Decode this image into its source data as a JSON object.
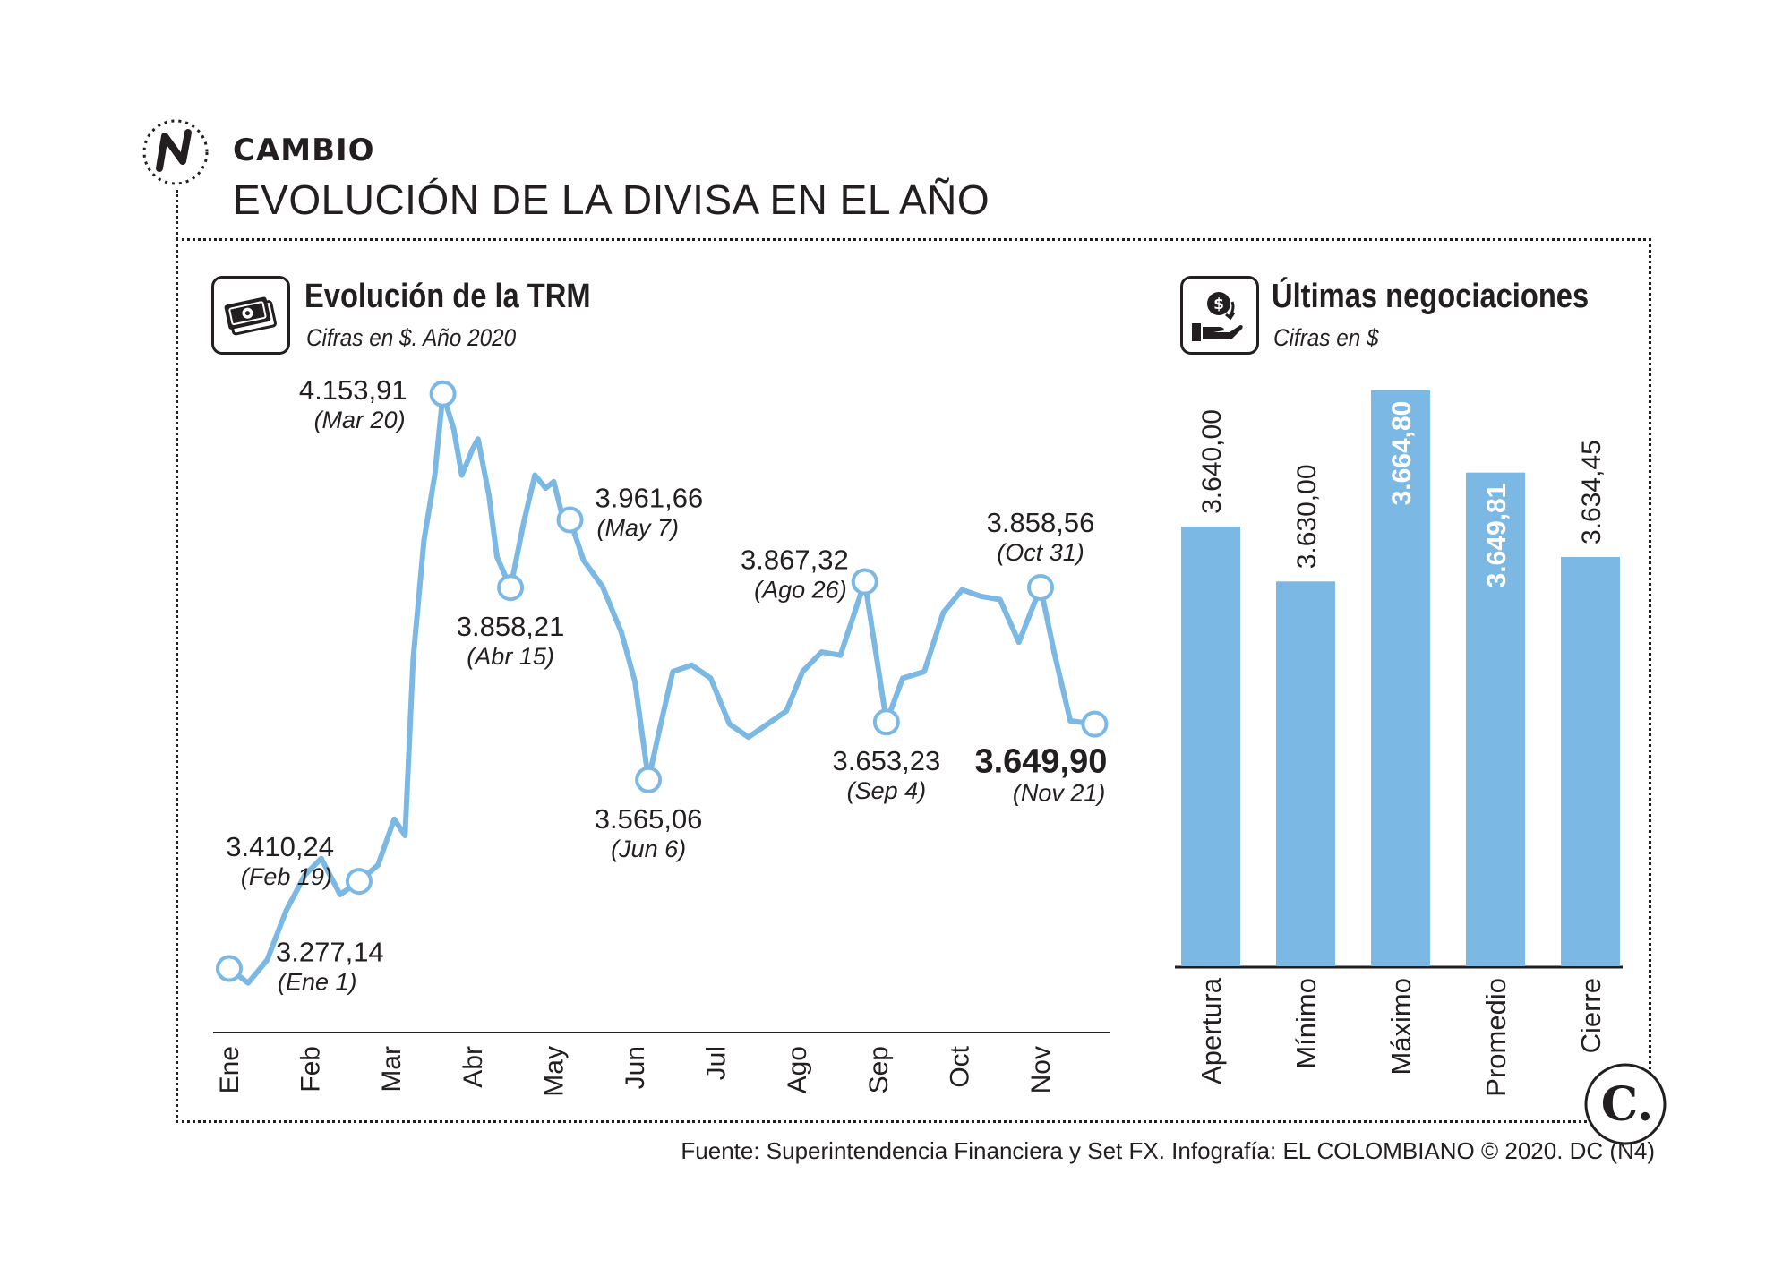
{
  "header": {
    "section_label": "CAMBIO",
    "title": "EVOLUCIÓN DE LA DIVISA EN EL AÑO"
  },
  "panels": {
    "left": {
      "title": "Evolución de la TRM",
      "subtitle": "Cifras en $. Año 2020"
    },
    "right": {
      "title": "Últimas negociaciones",
      "subtitle": "Cifras en $"
    }
  },
  "source": "Fuente: Superintendencia Financiera y Set FX. Infografía: EL COLOMBIANO © 2020. DC (N4)",
  "logo": {
    "letter": "C."
  },
  "colors": {
    "series": "#7bb9e4",
    "text": "#231f20"
  },
  "chart_data": [
    {
      "type": "line",
      "title": "Evolución de la TRM",
      "subtitle": "Cifras en $. Año 2020",
      "x_tick_labels": [
        "Ene",
        "Feb",
        "Mar",
        "Abr",
        "May",
        "Jun",
        "Jul",
        "Ago",
        "Sep",
        "Oct",
        "Nov"
      ],
      "ylim": [
        3230,
        4170
      ],
      "grid": false,
      "series": [
        {
          "points": [
            [
              "Ene 1",
              3277.14
            ],
            [
              "Ene 8",
              3255
            ],
            [
              "Ene 15",
              3290
            ],
            [
              "Ene 22",
              3365
            ],
            [
              "Ene 29",
              3420
            ],
            [
              "Feb 5",
              3445
            ],
            [
              "Feb 12",
              3390
            ],
            [
              "Feb 19",
              3410.24
            ],
            [
              "Feb 26",
              3435
            ],
            [
              "Mar 2",
              3505
            ],
            [
              "Mar 6",
              3480
            ],
            [
              "Mar 9",
              3750
            ],
            [
              "Mar 13",
              3930
            ],
            [
              "Mar 17",
              4030
            ],
            [
              "Mar 20",
              4153.91
            ],
            [
              "Mar 24",
              4100
            ],
            [
              "Mar 27",
              4030
            ],
            [
              "Mar 31",
              4070
            ],
            [
              "Abr 3",
              4085
            ],
            [
              "Abr 7",
              4000
            ],
            [
              "Abr 10",
              3905
            ],
            [
              "Abr 15",
              3858.21
            ],
            [
              "Abr 20",
              3960
            ],
            [
              "Abr 24",
              4030
            ],
            [
              "Abr 28",
              4010
            ],
            [
              "May 1",
              4020
            ],
            [
              "May 4",
              3970
            ],
            [
              "May 7",
              3961.66
            ],
            [
              "May 12",
              3900
            ],
            [
              "May 19",
              3860
            ],
            [
              "May 26",
              3790
            ],
            [
              "Jun 1",
              3715
            ],
            [
              "Jun 6",
              3565.06
            ],
            [
              "Jun 10",
              3640
            ],
            [
              "Jun 15",
              3730
            ],
            [
              "Jun 22",
              3740
            ],
            [
              "Jun 29",
              3720
            ],
            [
              "Jul 6",
              3650
            ],
            [
              "Jul 13",
              3630
            ],
            [
              "Jul 20",
              3650
            ],
            [
              "Jul 27",
              3670
            ],
            [
              "Ago 3",
              3730
            ],
            [
              "Ago 10",
              3760
            ],
            [
              "Ago 17",
              3755
            ],
            [
              "Ago 26",
              3867.32
            ],
            [
              "Sep 1",
              3735
            ],
            [
              "Sep 4",
              3653.23
            ],
            [
              "Sep 10",
              3720
            ],
            [
              "Sep 18",
              3730
            ],
            [
              "Sep 25",
              3820
            ],
            [
              "Oct 2",
              3855
            ],
            [
              "Oct 9",
              3845
            ],
            [
              "Oct 16",
              3840
            ],
            [
              "Oct 23",
              3775
            ],
            [
              "Oct 31",
              3858.56
            ],
            [
              "Nov 6",
              3760
            ],
            [
              "Nov 12",
              3655
            ],
            [
              "Nov 21",
              3649.9
            ]
          ]
        }
      ],
      "annotations": [
        {
          "value": "3.277,14",
          "date": "(Ene 1)",
          "x": "Ene 1",
          "y": 3277.14
        },
        {
          "value": "3.410,24",
          "date": "(Feb 19)",
          "x": "Feb 19",
          "y": 3410.24
        },
        {
          "value": "4.153,91",
          "date": "(Mar 20)",
          "x": "Mar 20",
          "y": 4153.91
        },
        {
          "value": "3.858,21",
          "date": "(Abr 15)",
          "x": "Abr 15",
          "y": 3858.21
        },
        {
          "value": "3.961,66",
          "date": "(May 7)",
          "x": "May 7",
          "y": 3961.66
        },
        {
          "value": "3.565,06",
          "date": "(Jun 6)",
          "x": "Jun 6",
          "y": 3565.06
        },
        {
          "value": "3.867,32",
          "date": "(Ago 26)",
          "x": "Ago 26",
          "y": 3867.32
        },
        {
          "value": "3.653,23",
          "date": "(Sep 4)",
          "x": "Sep 4",
          "y": 3653.23
        },
        {
          "value": "3.858,56",
          "date": "(Oct 31)",
          "x": "Oct 31",
          "y": 3858.56
        },
        {
          "value": "3.649,90",
          "date": "(Nov 21)",
          "x": "Nov 21",
          "y": 3649.9,
          "bold": true
        }
      ]
    },
    {
      "type": "bar",
      "title": "Últimas negociaciones",
      "subtitle": "Cifras en $",
      "categories": [
        "Apertura",
        "Mínimo",
        "Máximo",
        "Promedio",
        "Cierre"
      ],
      "values": [
        3640.0,
        3630.0,
        3664.8,
        3649.81,
        3634.45
      ],
      "value_labels": [
        "3.640,00",
        "3.630,00",
        "3.664,80",
        "3.649,81",
        "3.634,45"
      ],
      "label_inside": [
        false,
        false,
        true,
        true,
        false
      ],
      "ylim": [
        3560,
        3668
      ],
      "grid": false
    }
  ]
}
